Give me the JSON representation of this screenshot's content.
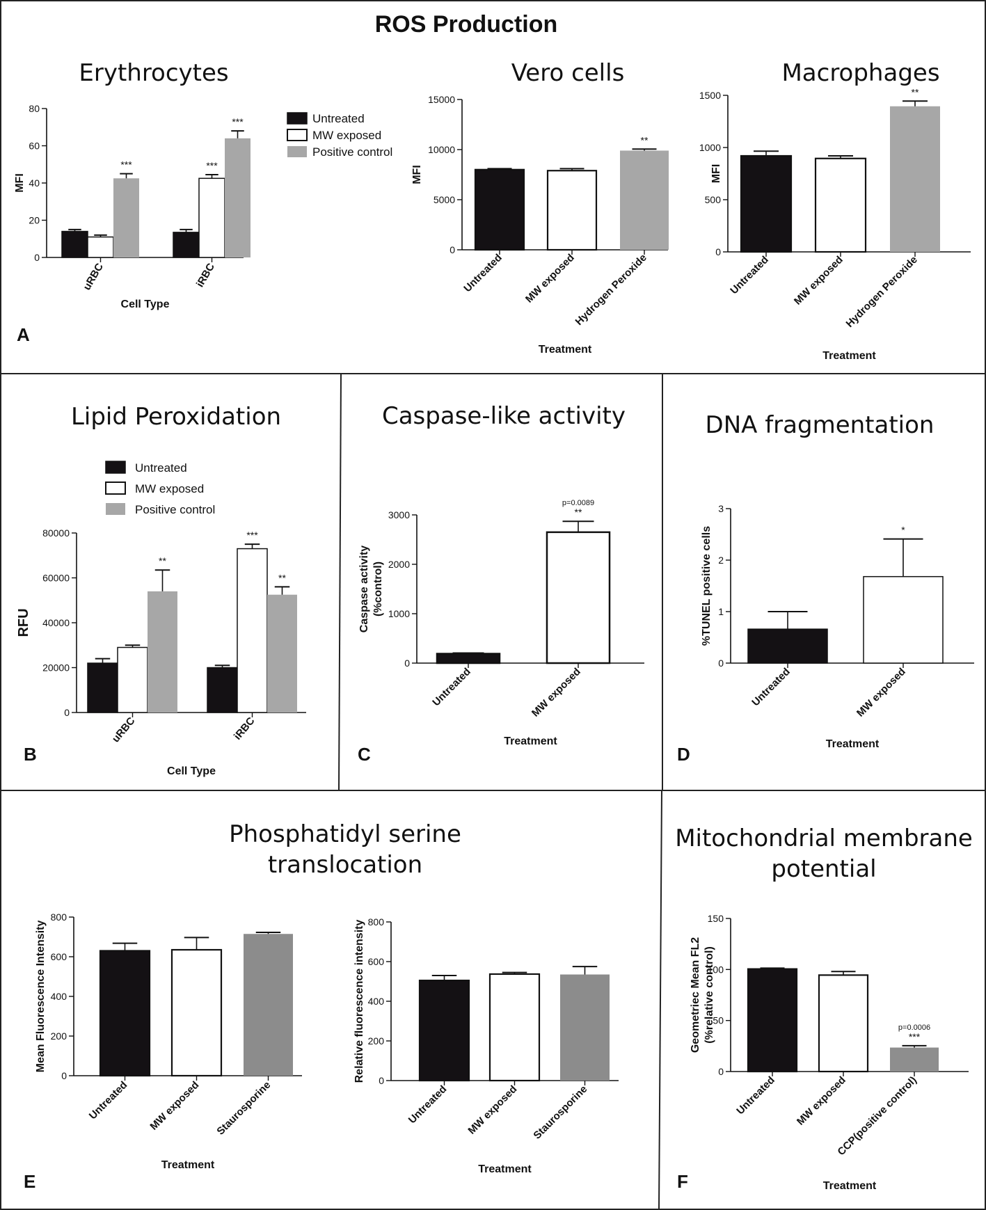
{
  "figure_title": "ROS Production",
  "panel_letters": [
    "A",
    "B",
    "C",
    "D",
    "E",
    "F"
  ],
  "colors": {
    "untreated": "#141114",
    "mw_exposed": "#ffffff",
    "positive": "#a7a7a7",
    "d_positive": "#a5a5a8",
    "e_positive": "#8c8c8c",
    "f_positive": "#8e8e8e"
  },
  "chart_data": [
    {
      "id": "A1",
      "type": "bar",
      "title": "Erythrocytes",
      "xlabel": "Cell Type",
      "ylabel": "MFI",
      "categories": [
        "uRBC",
        "iRBC"
      ],
      "ylim": [
        0,
        80
      ],
      "yticks": [
        0,
        20,
        40,
        60,
        80
      ],
      "series": [
        {
          "name": "Untreated",
          "values": [
            14,
            13.5
          ],
          "errors": [
            1,
            1.5
          ]
        },
        {
          "name": "MW exposed",
          "values": [
            11,
            42.5
          ],
          "errors": [
            1,
            2
          ]
        },
        {
          "name": "Positive control",
          "values": [
            42.5,
            64
          ],
          "errors": [
            2.5,
            4
          ]
        }
      ],
      "significance": [
        [
          "",
          ""
        ],
        [
          "",
          "***"
        ],
        [
          "***",
          "***"
        ]
      ]
    },
    {
      "id": "A2",
      "type": "bar",
      "title": "Vero cells",
      "xlabel": "Treatment",
      "ylabel": "MFI",
      "categories": [
        "Untreated",
        "MW exposed",
        "Hydrogen Peroxide"
      ],
      "ylim": [
        0,
        15000
      ],
      "yticks": [
        0,
        5000,
        10000,
        15000
      ],
      "values": [
        8000,
        7900,
        9900
      ],
      "errors": [
        100,
        200,
        150
      ],
      "significance": [
        "",
        "",
        "**"
      ]
    },
    {
      "id": "A3",
      "type": "bar",
      "title": "Macrophages",
      "xlabel": "Treatment",
      "ylabel": "MFI",
      "categories": [
        "Untreated",
        "MW exposed",
        "Hydrogen Peroxide"
      ],
      "ylim": [
        0,
        1500
      ],
      "yticks": [
        0,
        500,
        1000,
        1500
      ],
      "values": [
        920,
        895,
        1395
      ],
      "errors": [
        45,
        25,
        50
      ],
      "significance": [
        "",
        "",
        "**"
      ]
    },
    {
      "id": "B",
      "type": "bar",
      "title": "Lipid Peroxidation",
      "xlabel": "Cell Type",
      "ylabel": "RFU",
      "categories": [
        "uRBC",
        "iRBC"
      ],
      "ylim": [
        0,
        80000
      ],
      "yticks": [
        0,
        20000,
        40000,
        60000,
        80000
      ],
      "series": [
        {
          "name": "Untreated",
          "values": [
            22000,
            20000
          ],
          "errors": [
            2000,
            1000
          ]
        },
        {
          "name": "MW exposed",
          "values": [
            29000,
            73000
          ],
          "errors": [
            1000,
            2000
          ]
        },
        {
          "name": "Positive control",
          "values": [
            54000,
            52500
          ],
          "errors": [
            9500,
            3500
          ]
        }
      ],
      "significance": [
        [
          "",
          ""
        ],
        [
          "",
          "***"
        ],
        [
          "**",
          "**"
        ]
      ]
    },
    {
      "id": "C",
      "type": "bar",
      "title": "Caspase-like activity",
      "xlabel": "Treatment",
      "ylabel": "Caspase activity (%control)",
      "categories": [
        "Untreated",
        "MW exposed"
      ],
      "ylim": [
        0,
        3000
      ],
      "yticks": [
        0,
        1000,
        2000,
        3000
      ],
      "values": [
        190,
        2650
      ],
      "errors": [
        15,
        220
      ],
      "significance": [
        "",
        "**"
      ],
      "annotations": [
        "",
        "p=0.0089"
      ]
    },
    {
      "id": "D",
      "type": "bar",
      "title": "DNA fragmentation",
      "xlabel": "Treatment",
      "ylabel": "%TUNEL positive cells",
      "categories": [
        "Untreated",
        "MW exposed"
      ],
      "ylim": [
        0,
        3
      ],
      "yticks": [
        0,
        1,
        2,
        3
      ],
      "values": [
        0.66,
        1.68
      ],
      "errors": [
        0.34,
        0.73
      ],
      "significance": [
        "",
        "*"
      ]
    },
    {
      "id": "E1",
      "type": "bar",
      "title": "Phosphatidyl serine translocation",
      "xlabel": "Treatment",
      "ylabel": "Mean Fluorescence Intensity",
      "categories": [
        "Untreated",
        "MW exposed",
        "Staurosporine"
      ],
      "ylim": [
        0,
        800
      ],
      "yticks": [
        0,
        200,
        400,
        600,
        800
      ],
      "values": [
        630,
        635,
        715
      ],
      "errors": [
        38,
        62,
        8
      ]
    },
    {
      "id": "E2",
      "type": "bar",
      "title": "",
      "xlabel": "Treatment",
      "ylabel": "Relative fluorescence intensity",
      "categories": [
        "Untreated",
        "MW exposed",
        "Staurosporine"
      ],
      "ylim": [
        0,
        800
      ],
      "yticks": [
        0,
        200,
        400,
        600,
        800
      ],
      "values": [
        505,
        537,
        535
      ],
      "errors": [
        25,
        8,
        40
      ]
    },
    {
      "id": "F",
      "type": "bar",
      "title": "Mitochondrial membrane potential",
      "xlabel": "Treatment",
      "ylabel": "Geometriec Mean FL2 (%relative control)",
      "categories": [
        "Untreated",
        "MW exposed",
        "CCP(positive control)"
      ],
      "ylim": [
        0,
        150
      ],
      "yticks": [
        0,
        50,
        100,
        150
      ],
      "values": [
        100.5,
        94.5,
        23.5
      ],
      "errors": [
        0.8,
        3.5,
        1.8
      ],
      "significance": [
        "",
        "",
        "***"
      ],
      "annotations": [
        "",
        "",
        "p=0.0006"
      ]
    }
  ]
}
